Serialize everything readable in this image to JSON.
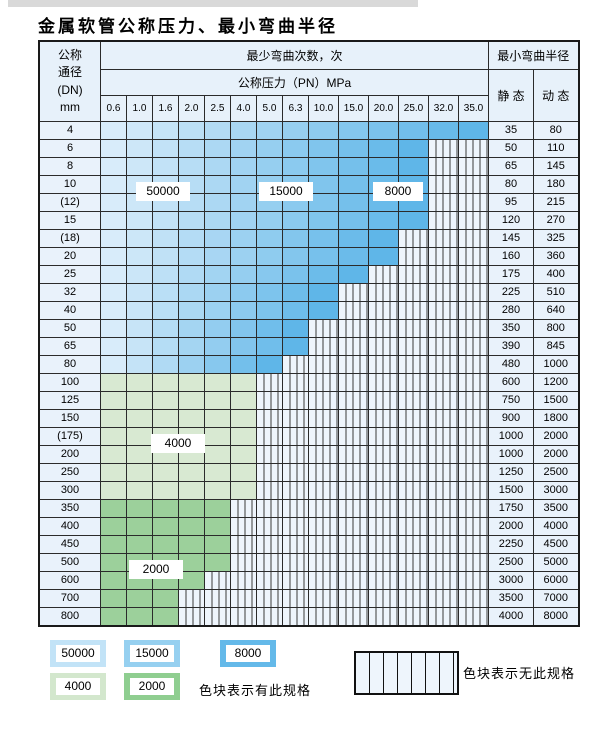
{
  "title": "金属软管公称压力、最小弯曲半径",
  "table": {
    "dn_header_lines": [
      "公称",
      "通径",
      "(DN)",
      "mm"
    ],
    "cycles_header": "最少弯曲次数，次",
    "pressure_header": "公称压力（PN）MPa",
    "pressure_columns": [
      "0.6",
      "1.0",
      "1.6",
      "2.0",
      "2.5",
      "4.0",
      "5.0",
      "6.3",
      "10.0",
      "15.0",
      "20.0",
      "25.0",
      "32.0",
      "35.0"
    ],
    "radius_header": "最小弯曲半径",
    "static_header": "静 态",
    "dynamic_header": "动 态",
    "rows": [
      {
        "dn": "4",
        "zone": "blue",
        "colored_through": 14,
        "static": "35",
        "dynamic": "80"
      },
      {
        "dn": "6",
        "zone": "blue",
        "colored_through": 12,
        "static": "50",
        "dynamic": "110"
      },
      {
        "dn": "8",
        "zone": "blue",
        "colored_through": 12,
        "static": "65",
        "dynamic": "145"
      },
      {
        "dn": "10",
        "zone": "blue",
        "colored_through": 12,
        "static": "80",
        "dynamic": "180"
      },
      {
        "dn": "(12)",
        "zone": "blue",
        "colored_through": 12,
        "static": "95",
        "dynamic": "215"
      },
      {
        "dn": "15",
        "zone": "blue",
        "colored_through": 12,
        "static": "120",
        "dynamic": "270"
      },
      {
        "dn": "(18)",
        "zone": "blue",
        "colored_through": 11,
        "static": "145",
        "dynamic": "325"
      },
      {
        "dn": "20",
        "zone": "blue",
        "colored_through": 11,
        "static": "160",
        "dynamic": "360"
      },
      {
        "dn": "25",
        "zone": "blue",
        "colored_through": 10,
        "static": "175",
        "dynamic": "400"
      },
      {
        "dn": "32",
        "zone": "blue",
        "colored_through": 9,
        "static": "225",
        "dynamic": "510"
      },
      {
        "dn": "40",
        "zone": "blue",
        "colored_through": 9,
        "static": "280",
        "dynamic": "640"
      },
      {
        "dn": "50",
        "zone": "blue",
        "colored_through": 8,
        "static": "350",
        "dynamic": "800"
      },
      {
        "dn": "65",
        "zone": "blue",
        "colored_through": 8,
        "static": "390",
        "dynamic": "845"
      },
      {
        "dn": "80",
        "zone": "blue",
        "colored_through": 7,
        "static": "480",
        "dynamic": "1000"
      },
      {
        "dn": "100",
        "zone": "green-light",
        "colored_through": 6,
        "static": "600",
        "dynamic": "1200"
      },
      {
        "dn": "125",
        "zone": "green-light",
        "colored_through": 6,
        "static": "750",
        "dynamic": "1500"
      },
      {
        "dn": "150",
        "zone": "green-light",
        "colored_through": 6,
        "static": "900",
        "dynamic": "1800"
      },
      {
        "dn": "(175)",
        "zone": "green-light",
        "colored_through": 6,
        "static": "1000",
        "dynamic": "2000"
      },
      {
        "dn": "200",
        "zone": "green-light",
        "colored_through": 6,
        "static": "1000",
        "dynamic": "2000"
      },
      {
        "dn": "250",
        "zone": "green-light",
        "colored_through": 6,
        "static": "1250",
        "dynamic": "2500"
      },
      {
        "dn": "300",
        "zone": "green-light",
        "colored_through": 6,
        "static": "1500",
        "dynamic": "3000"
      },
      {
        "dn": "350",
        "zone": "green-dark",
        "colored_through": 5,
        "static": "1750",
        "dynamic": "3500"
      },
      {
        "dn": "400",
        "zone": "green-dark",
        "colored_through": 5,
        "static": "2000",
        "dynamic": "4000"
      },
      {
        "dn": "450",
        "zone": "green-dark",
        "colored_through": 5,
        "static": "2250",
        "dynamic": "4500"
      },
      {
        "dn": "500",
        "zone": "green-dark",
        "colored_through": 5,
        "static": "2500",
        "dynamic": "5000"
      },
      {
        "dn": "600",
        "zone": "green-dark",
        "colored_through": 4,
        "static": "3000",
        "dynamic": "6000"
      },
      {
        "dn": "700",
        "zone": "green-dark",
        "colored_through": 3,
        "static": "3500",
        "dynamic": "7000"
      },
      {
        "dn": "800",
        "zone": "green-dark",
        "colored_through": 3,
        "static": "4000",
        "dynamic": "8000"
      }
    ]
  },
  "overlays": [
    {
      "label": "50000"
    },
    {
      "label": "15000"
    },
    {
      "label": "8000"
    },
    {
      "label": "4000"
    },
    {
      "label": "2000"
    }
  ],
  "legend": {
    "items": [
      {
        "label": "50000",
        "color": "#c2e3f7"
      },
      {
        "label": "15000",
        "color": "#96d0f0"
      },
      {
        "label": "8000",
        "color": "#64b9e9"
      },
      {
        "label": "4000",
        "color": "#d3e7cd"
      },
      {
        "label": "2000",
        "color": "#8fce90"
      }
    ],
    "available_note": "色块表示有此规格",
    "unavailable_note": "色块表示无此规格"
  },
  "colors": {
    "blue_light": "#d8ecfa",
    "blue_dark": "#5fb6e8",
    "green_light": "#d8e9d2",
    "green_dark": "#9cd09b",
    "striped_bg": "#eef5fc"
  }
}
